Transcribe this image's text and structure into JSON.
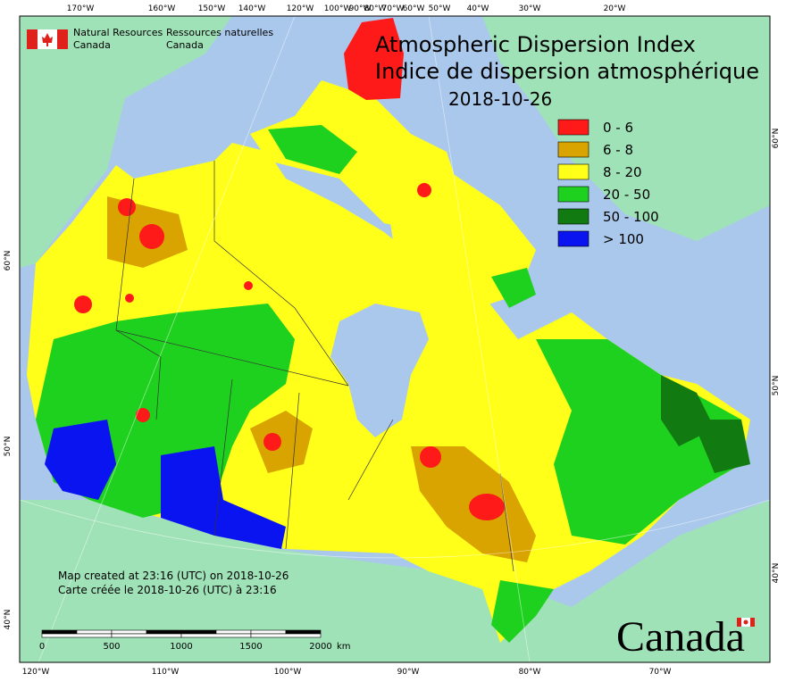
{
  "header": {
    "logo_en": [
      "Natural Resources",
      "Canada"
    ],
    "logo_fr": [
      "Ressources naturelles",
      "Canada"
    ]
  },
  "title": {
    "en": "Atmospheric Dispersion Index",
    "fr": "Indice de dispersion atmosphérique",
    "date": "2018-10-26"
  },
  "legend": [
    {
      "label": "0 - 6",
      "color": "#ff1a1a"
    },
    {
      "label": "6 - 8",
      "color": "#d9a400"
    },
    {
      "label": "8 - 20",
      "color": "#ffff1a"
    },
    {
      "label": "20 - 50",
      "color": "#1fd11f"
    },
    {
      "label": "50 - 100",
      "color": "#117a11"
    },
    {
      "label": "> 100",
      "color": "#0a14f0"
    }
  ],
  "axes": {
    "top": [
      "170°W",
      "160°W",
      "150°W",
      "140°W",
      "120°W",
      "100°W",
      "90°W",
      "80°W",
      "70°W",
      "60°W",
      "50°W",
      "40°W",
      "30°W",
      "20°W"
    ],
    "bottom": [
      "120°W",
      "110°W",
      "100°W",
      "90°W",
      "80°W",
      "70°W"
    ],
    "left": [
      "60°N",
      "50°N",
      "40°N"
    ],
    "right": [
      "60°N",
      "50°N",
      "40°N"
    ]
  },
  "notes": [
    "Map created at 23:16 (UTC) on 2018-10-26",
    "Carte créée le 2018-10-26 (UTC) à 23:16"
  ],
  "scale_bar": {
    "labels": [
      "0",
      "500",
      "1000",
      "1500",
      "2000"
    ],
    "unit": "km"
  },
  "wordmark": "Canada"
}
